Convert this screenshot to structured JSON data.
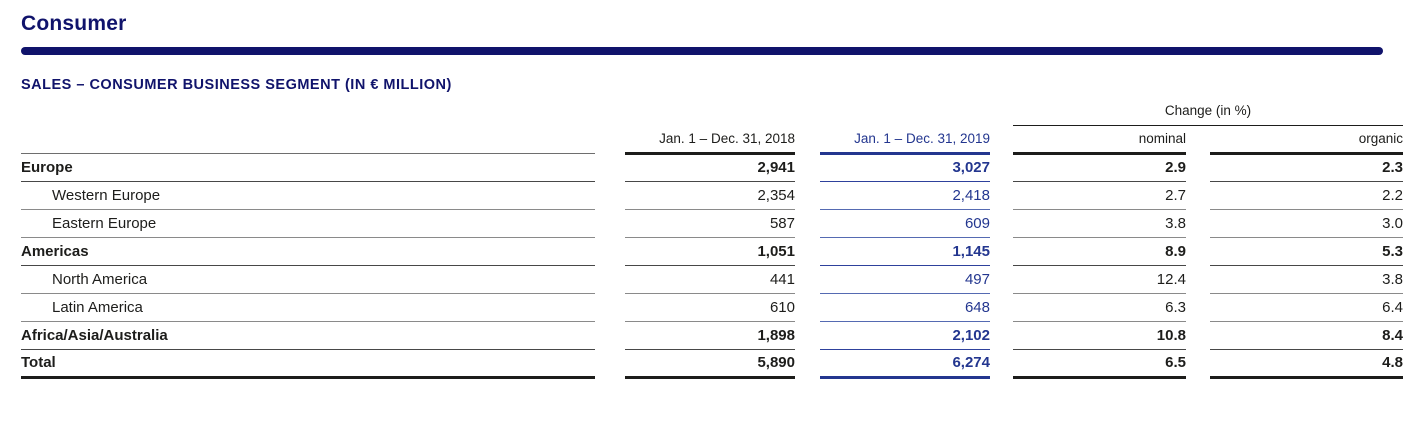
{
  "page": {
    "title": "Consumer",
    "section_title": "SALES – CONSUMER BUSINESS SEGMENT (IN € MILLION)"
  },
  "colors": {
    "navy": "#10136b",
    "blue_2019": "#23368f",
    "text": "#1d1d1b"
  },
  "table": {
    "group_header": "Change (in %)",
    "columns": {
      "period_2018": "Jan. 1 – Dec. 31, 2018",
      "period_2019": "Jan. 1 – Dec. 31, 2019",
      "nominal": "nominal",
      "organic": "organic"
    },
    "rows": [
      {
        "label": "Europe",
        "bold": true,
        "indent": false,
        "v2018": "2,941",
        "v2019": "3,027",
        "nominal": "2.9",
        "organic": "2.3"
      },
      {
        "label": "Western Europe",
        "bold": false,
        "indent": true,
        "v2018": "2,354",
        "v2019": "2,418",
        "nominal": "2.7",
        "organic": "2.2"
      },
      {
        "label": "Eastern Europe",
        "bold": false,
        "indent": true,
        "v2018": "587",
        "v2019": "609",
        "nominal": "3.8",
        "organic": "3.0"
      },
      {
        "label": "Americas",
        "bold": true,
        "indent": false,
        "v2018": "1,051",
        "v2019": "1,145",
        "nominal": "8.9",
        "organic": "5.3"
      },
      {
        "label": "North America",
        "bold": false,
        "indent": true,
        "v2018": "441",
        "v2019": "497",
        "nominal": "12.4",
        "organic": "3.8"
      },
      {
        "label": "Latin America",
        "bold": false,
        "indent": true,
        "v2018": "610",
        "v2019": "648",
        "nominal": "6.3",
        "organic": "6.4"
      },
      {
        "label": "Africa/Asia/Australia",
        "bold": true,
        "indent": false,
        "v2018": "1,898",
        "v2019": "2,102",
        "nominal": "10.8",
        "organic": "8.4"
      },
      {
        "label": "Total",
        "bold": true,
        "indent": false,
        "v2018": "5,890",
        "v2019": "6,274",
        "nominal": "6.5",
        "organic": "4.8"
      }
    ]
  },
  "chart_data": {
    "type": "table",
    "title": "SALES – CONSUMER BUSINESS SEGMENT (IN € MILLION)",
    "categories": [
      "Europe",
      "Western Europe",
      "Eastern Europe",
      "Americas",
      "North America",
      "Latin America",
      "Africa/Asia/Australia",
      "Total"
    ],
    "series": [
      {
        "name": "Jan. 1 – Dec. 31, 2018",
        "values": [
          2941,
          2354,
          587,
          1051,
          441,
          610,
          1898,
          5890
        ]
      },
      {
        "name": "Jan. 1 – Dec. 31, 2019",
        "values": [
          3027,
          2418,
          609,
          1145,
          497,
          648,
          2102,
          6274
        ]
      },
      {
        "name": "Change nominal (%)",
        "values": [
          2.9,
          2.7,
          3.8,
          8.9,
          12.4,
          6.3,
          10.8,
          6.5
        ]
      },
      {
        "name": "Change organic (%)",
        "values": [
          2.3,
          2.2,
          3.0,
          5.3,
          3.8,
          6.4,
          8.4,
          4.8
        ]
      }
    ]
  }
}
